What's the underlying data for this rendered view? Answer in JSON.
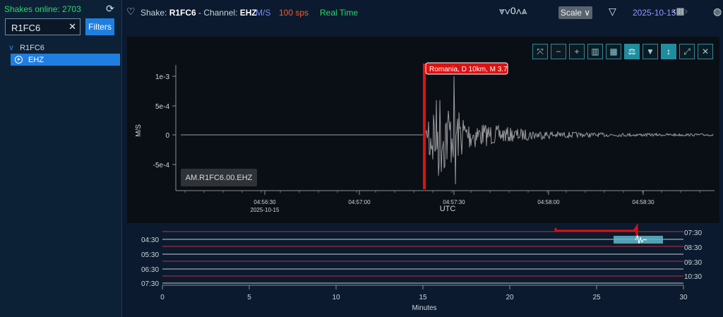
{
  "sidebar": {
    "online_text": "Shakes online: 2703",
    "search_value": "R1FC6",
    "filters_label": "Filters",
    "tree_root": "R1FC6",
    "tree_item": "EHZ"
  },
  "header": {
    "shake_label": "Shake: ",
    "station": "R1FC6",
    "channel_label": " - Channel: ",
    "channel": "EHZ",
    "unit": "M/S",
    "sps": "100 sps",
    "mode": "Real Time",
    "nav_count": "0",
    "scale_label": "Scale",
    "date": "2025-10-15"
  },
  "plot": {
    "station_tag": "AM.R1FC6.00.EHZ",
    "event_label": "Romania, D 10km, M 3.7",
    "ylabel": "M/S",
    "xlabel": "UTC",
    "yticks": [
      "1e-3",
      "5e-4",
      "0",
      "-5e-4"
    ],
    "xticks": [
      "04:56:30",
      "04:57:00",
      "04:57:30",
      "04:58:00",
      "04:58:30"
    ],
    "xdate": "2025-10-15"
  },
  "helicorder": {
    "left_labels": [
      "04:30",
      "05:30",
      "06:30",
      "07:30"
    ],
    "right_labels": [
      "07:30",
      "08:30",
      "09:30",
      "10:30"
    ],
    "xticks": [
      "0",
      "5",
      "10",
      "15",
      "20",
      "25",
      "30"
    ],
    "xlabel": "Minutes"
  },
  "colors": {
    "accent": "#1f7fe0",
    "online": "#2bd96b",
    "event": "#e01010",
    "trace": "#9a9a9a",
    "selection": "#5fb8c8"
  },
  "icons": {
    "refresh": "refresh-icon",
    "heart": "heart-icon",
    "filter": "filter-icon",
    "calendar": "calendar-icon",
    "globe": "globe-icon"
  }
}
